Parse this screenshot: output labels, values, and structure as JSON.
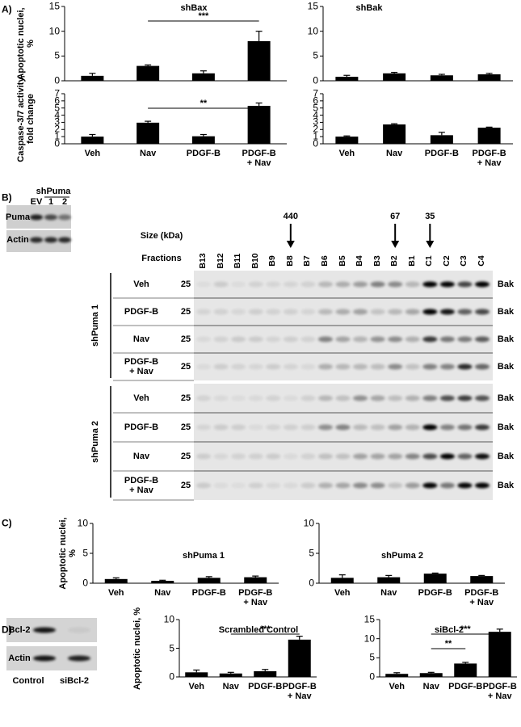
{
  "panel_labels": [
    "A)",
    "B)",
    "C)",
    "D)"
  ],
  "chart_data": [
    {
      "type": "bar",
      "title": "shBax",
      "ylabel": "Apoptotic nuclei, %",
      "categories": [
        null,
        null,
        null,
        null
      ],
      "values": [
        1,
        3,
        1.5,
        8
      ],
      "errors": [
        0.5,
        0.2,
        0.5,
        2
      ],
      "ylim": [
        0,
        15
      ],
      "yticks": [
        0,
        5,
        10,
        15
      ],
      "color": "#000000",
      "annotations": [
        {
          "text": "***",
          "from": 1,
          "to": 3
        }
      ]
    },
    {
      "type": "bar",
      "title": "shBak",
      "categories": [
        null,
        null,
        null,
        null
      ],
      "values": [
        0.8,
        1.5,
        1.1,
        1.3
      ],
      "errors": [
        0.3,
        0.2,
        0.2,
        0.2
      ],
      "ylim": [
        0,
        15
      ],
      "yticks": [
        0,
        5,
        10,
        15
      ],
      "color": "#000000"
    },
    {
      "type": "bar",
      "ylabel": "Caspase-3/7 activity, fold change",
      "categories": [
        "Veh",
        "Nav",
        "PDGF-B",
        "PDGF-B\n+ Nav"
      ],
      "values": [
        1,
        2.95,
        1.05,
        5.3
      ],
      "errors": [
        0.3,
        0.2,
        0.25,
        0.4
      ],
      "ylim": [
        0,
        7
      ],
      "yticks": [
        0,
        1,
        2,
        3,
        4,
        5,
        6,
        7
      ],
      "color": "#000000",
      "annotations": [
        {
          "text": "**",
          "from": 1,
          "to": 3
        }
      ]
    },
    {
      "type": "bar",
      "categories": [
        "Veh",
        "Nav",
        "PDGF-B",
        "PDGF-B\n+ Nav"
      ],
      "values": [
        1,
        2.7,
        1.2,
        2.25
      ],
      "errors": [
        0.1,
        0.1,
        0.4,
        0.08
      ],
      "ylim": [
        0,
        7
      ],
      "yticks": [
        0,
        1,
        2,
        3,
        4,
        5,
        6,
        7
      ],
      "color": "#000000"
    },
    {
      "type": "bar",
      "title": "shPuma 1",
      "ylabel": "Apoptotic nuclei, %",
      "categories": [
        "Veh",
        "Nav",
        "PDGF-B",
        "PDGF-B\n+ Nav"
      ],
      "values": [
        0.7,
        0.4,
        0.9,
        1.0
      ],
      "errors": [
        0.2,
        0.1,
        0.2,
        0.2
      ],
      "ylim": [
        0,
        10
      ],
      "yticks": [
        0,
        5,
        10
      ],
      "color": "#000000"
    },
    {
      "type": "bar",
      "title": "shPuma 2",
      "categories": [
        "Veh",
        "Nav",
        "PDGF-B",
        "PDGF-B\n+ Nav"
      ],
      "values": [
        0.9,
        1.0,
        1.6,
        1.2
      ],
      "errors": [
        0.5,
        0.3,
        0.1,
        0.1
      ],
      "ylim": [
        0,
        10
      ],
      "yticks": [
        0,
        5,
        10
      ],
      "color": "#000000"
    },
    {
      "type": "bar",
      "title": "Scrambled Control",
      "ylabel": "Apoptotic nuclei, %",
      "categories": [
        "Veh",
        "Nav",
        "PDGF-B",
        "PDGF-B\n+ Nav"
      ],
      "values": [
        0.8,
        0.6,
        1.0,
        6.5
      ],
      "errors": [
        0.4,
        0.2,
        0.3,
        0.6
      ],
      "ylim": [
        0,
        10
      ],
      "yticks": [
        0,
        5,
        10
      ],
      "color": "#000000",
      "annotations": [
        {
          "text": "***",
          "from": 1,
          "to": 3
        }
      ]
    },
    {
      "type": "bar",
      "title": "siBcl-2",
      "categories": [
        "Veh",
        "Nav",
        "PDGF-B",
        "PDGF-B\n+ Nav"
      ],
      "values": [
        0.8,
        1.0,
        3.5,
        11.8
      ],
      "errors": [
        0.3,
        0.2,
        0.3,
        0.7
      ],
      "ylim": [
        0,
        15
      ],
      "yticks": [
        0,
        5,
        10,
        15
      ],
      "color": "#000000",
      "annotations": [
        {
          "text": "**",
          "from": 1,
          "to": 2
        },
        {
          "text": "***",
          "from": 1,
          "to": 3
        }
      ]
    }
  ],
  "blot_b_small": {
    "group": "shPuma",
    "lanes": [
      "EV",
      "1",
      "2"
    ],
    "rows": [
      "Puma",
      "Actin"
    ]
  },
  "blot_b": {
    "size_title": "Size (kDa)",
    "size_markers": {
      "B8": "440",
      "B2": "67",
      "C1": "35"
    },
    "fractions_title": "Fractions",
    "fractions": [
      "B13",
      "B12",
      "B11",
      "B10",
      "B9",
      "B8",
      "B7",
      "B6",
      "B5",
      "B4",
      "B3",
      "B2",
      "B1",
      "C1",
      "C2",
      "C3",
      "C4"
    ],
    "groups": [
      {
        "name": "shPuma 1",
        "rows": [
          {
            "label": "Veh",
            "marker": "25",
            "protein": "Bak"
          },
          {
            "label": "PDGF-B",
            "marker": "25",
            "protein": "Bak"
          },
          {
            "label": "Nav",
            "marker": "25",
            "protein": "Bak"
          },
          {
            "label": "PDGF-B\n+ Nav",
            "marker": "25",
            "protein": "Bak"
          }
        ]
      },
      {
        "name": "shPuma 2",
        "rows": [
          {
            "label": "Veh",
            "marker": "25",
            "protein": "Bak"
          },
          {
            "label": "PDGF-B",
            "marker": "25",
            "protein": "Bak"
          },
          {
            "label": "Nav",
            "marker": "25",
            "protein": "Bak"
          },
          {
            "label": "PDGF-B\n+ Nav",
            "marker": "25",
            "protein": "Bak"
          }
        ]
      }
    ]
  },
  "blot_d": {
    "rows": [
      "Bcl-2",
      "Actin"
    ],
    "lanes": [
      "Control",
      "siBcl-2"
    ]
  }
}
